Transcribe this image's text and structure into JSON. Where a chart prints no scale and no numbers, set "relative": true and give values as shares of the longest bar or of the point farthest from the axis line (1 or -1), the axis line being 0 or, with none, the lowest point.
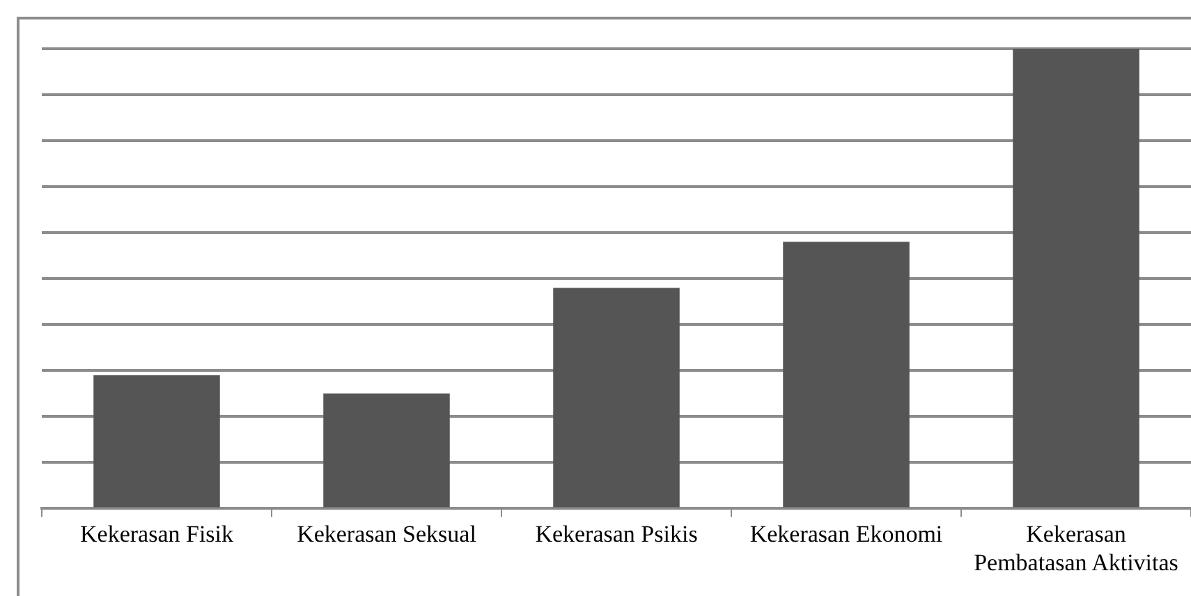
{
  "chart_data": {
    "type": "bar",
    "relative": true,
    "categories": [
      "Kekerasan Fisik",
      "Kekerasan Seksual",
      "Kekerasan Psikis",
      "Kekerasan Ekonomi",
      "Kekerasan Pembatasan Aktivitas"
    ],
    "values": [
      0.29,
      0.25,
      0.48,
      0.58,
      1
    ],
    "color": "#555555",
    "grid": "y",
    "legend": false
  }
}
